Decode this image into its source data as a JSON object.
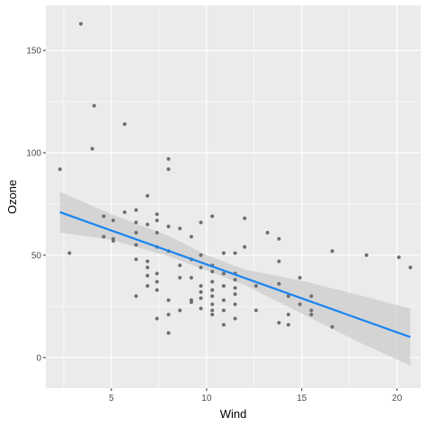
{
  "chart_data": {
    "type": "scatter",
    "xlabel": "Wind",
    "ylabel": "Ozone",
    "xlim": [
      1.56,
      21.24
    ],
    "ylim": [
      -15,
      172
    ],
    "x_ticks": [
      5,
      10,
      15,
      20
    ],
    "x_tick_labels": [
      "5",
      "10",
      "15",
      "20"
    ],
    "y_ticks": [
      0,
      50,
      100,
      150
    ],
    "y_tick_labels": [
      "0",
      "50",
      "100",
      "150"
    ],
    "grid": true,
    "legend": "none",
    "colors": {
      "panel": "#ebebeb",
      "grid": "#ffffff",
      "points": "#6e6e6e",
      "fit_line": "#1a85f0",
      "confidence_band": "#cccccc"
    },
    "points": [
      {
        "x": 2.3,
        "y": 92
      },
      {
        "x": 2.8,
        "y": 51
      },
      {
        "x": 3.4,
        "y": 163
      },
      {
        "x": 4.0,
        "y": 102
      },
      {
        "x": 4.1,
        "y": 123
      },
      {
        "x": 4.6,
        "y": 69
      },
      {
        "x": 4.6,
        "y": 59
      },
      {
        "x": 5.1,
        "y": 67
      },
      {
        "x": 5.1,
        "y": 57
      },
      {
        "x": 5.1,
        "y": 58
      },
      {
        "x": 5.7,
        "y": 114
      },
      {
        "x": 5.7,
        "y": 71
      },
      {
        "x": 6.3,
        "y": 72
      },
      {
        "x": 6.3,
        "y": 66
      },
      {
        "x": 6.3,
        "y": 61
      },
      {
        "x": 6.3,
        "y": 55
      },
      {
        "x": 6.3,
        "y": 48
      },
      {
        "x": 6.3,
        "y": 30
      },
      {
        "x": 6.9,
        "y": 79
      },
      {
        "x": 6.9,
        "y": 65
      },
      {
        "x": 6.9,
        "y": 47
      },
      {
        "x": 6.9,
        "y": 44
      },
      {
        "x": 6.9,
        "y": 40
      },
      {
        "x": 6.9,
        "y": 35
      },
      {
        "x": 7.4,
        "y": 70
      },
      {
        "x": 7.4,
        "y": 67
      },
      {
        "x": 7.4,
        "y": 61
      },
      {
        "x": 7.4,
        "y": 54
      },
      {
        "x": 7.4,
        "y": 41
      },
      {
        "x": 7.4,
        "y": 37
      },
      {
        "x": 7.4,
        "y": 33
      },
      {
        "x": 7.4,
        "y": 19
      },
      {
        "x": 8.0,
        "y": 97
      },
      {
        "x": 8.0,
        "y": 92
      },
      {
        "x": 8.0,
        "y": 64
      },
      {
        "x": 8.0,
        "y": 52
      },
      {
        "x": 8.0,
        "y": 28
      },
      {
        "x": 8.0,
        "y": 21
      },
      {
        "x": 8.0,
        "y": 12
      },
      {
        "x": 8.6,
        "y": 63
      },
      {
        "x": 8.6,
        "y": 45
      },
      {
        "x": 8.6,
        "y": 39
      },
      {
        "x": 8.6,
        "y": 23
      },
      {
        "x": 9.2,
        "y": 59
      },
      {
        "x": 9.2,
        "y": 48
      },
      {
        "x": 9.2,
        "y": 39
      },
      {
        "x": 9.2,
        "y": 28
      },
      {
        "x": 9.2,
        "y": 27
      },
      {
        "x": 9.7,
        "y": 66
      },
      {
        "x": 9.7,
        "y": 50
      },
      {
        "x": 9.7,
        "y": 44
      },
      {
        "x": 9.7,
        "y": 35
      },
      {
        "x": 9.7,
        "y": 32
      },
      {
        "x": 9.7,
        "y": 29
      },
      {
        "x": 9.7,
        "y": 24
      },
      {
        "x": 10.3,
        "y": 69
      },
      {
        "x": 10.3,
        "y": 45
      },
      {
        "x": 10.3,
        "y": 42
      },
      {
        "x": 10.3,
        "y": 37
      },
      {
        "x": 10.3,
        "y": 33
      },
      {
        "x": 10.3,
        "y": 30
      },
      {
        "x": 10.3,
        "y": 26
      },
      {
        "x": 10.3,
        "y": 23
      },
      {
        "x": 10.3,
        "y": 21
      },
      {
        "x": 10.9,
        "y": 51
      },
      {
        "x": 10.9,
        "y": 41
      },
      {
        "x": 10.9,
        "y": 35
      },
      {
        "x": 10.9,
        "y": 28
      },
      {
        "x": 10.9,
        "y": 23
      },
      {
        "x": 10.9,
        "y": 16
      },
      {
        "x": 11.5,
        "y": 51
      },
      {
        "x": 11.5,
        "y": 41
      },
      {
        "x": 11.5,
        "y": 38
      },
      {
        "x": 11.5,
        "y": 34
      },
      {
        "x": 11.5,
        "y": 31
      },
      {
        "x": 11.5,
        "y": 26
      },
      {
        "x": 11.5,
        "y": 19
      },
      {
        "x": 12.0,
        "y": 68
      },
      {
        "x": 12.0,
        "y": 54
      },
      {
        "x": 12.6,
        "y": 35
      },
      {
        "x": 12.6,
        "y": 23
      },
      {
        "x": 13.2,
        "y": 61
      },
      {
        "x": 13.8,
        "y": 58
      },
      {
        "x": 13.8,
        "y": 47
      },
      {
        "x": 13.8,
        "y": 36
      },
      {
        "x": 13.8,
        "y": 17
      },
      {
        "x": 14.3,
        "y": 30
      },
      {
        "x": 14.3,
        "y": 21
      },
      {
        "x": 14.3,
        "y": 16
      },
      {
        "x": 14.9,
        "y": 39
      },
      {
        "x": 14.9,
        "y": 26
      },
      {
        "x": 15.5,
        "y": 30
      },
      {
        "x": 15.5,
        "y": 23
      },
      {
        "x": 15.5,
        "y": 21
      },
      {
        "x": 16.6,
        "y": 52
      },
      {
        "x": 16.6,
        "y": 15
      },
      {
        "x": 18.4,
        "y": 50
      },
      {
        "x": 20.1,
        "y": 49
      },
      {
        "x": 20.7,
        "y": 44
      }
    ],
    "fit_line": {
      "x": [
        2.3,
        20.7
      ],
      "y": [
        71,
        10
      ]
    },
    "confidence_band": {
      "x": [
        2.3,
        5,
        8,
        10,
        12,
        15,
        18,
        20.7
      ],
      "lower": [
        61,
        57.5,
        49.5,
        42.5,
        35.5,
        21.5,
        7.5,
        -4
      ],
      "upper": [
        81,
        70,
        59.5,
        50,
        43,
        37.5,
        30.5,
        24
      ]
    }
  }
}
